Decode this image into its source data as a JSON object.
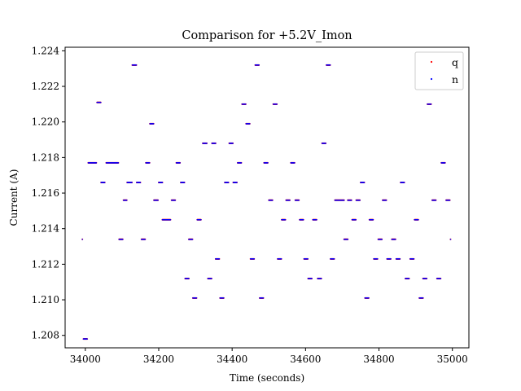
{
  "chart_data": {
    "type": "scatter",
    "title": "Comparison for +5.2V_Imon",
    "xlabel": "Time (seconds)",
    "ylabel": "Current (A)",
    "xlim": [
      33945,
      35045
    ],
    "ylim": [
      1.2073,
      1.2242
    ],
    "xticks": [
      34000,
      34200,
      34400,
      34600,
      34800,
      35000
    ],
    "xtick_labels": [
      "34000",
      "34200",
      "34400",
      "34600",
      "34800",
      "35000"
    ],
    "yticks": [
      1.208,
      1.21,
      1.212,
      1.214,
      1.216,
      1.218,
      1.22,
      1.222,
      1.224
    ],
    "ytick_labels": [
      "1.208",
      "1.210",
      "1.212",
      "1.214",
      "1.216",
      "1.218",
      "1.220",
      "1.222",
      "1.224"
    ],
    "grid": false,
    "legend": {
      "position": "top-right"
    },
    "series": [
      {
        "name": "q",
        "color": "#ff0000",
        "segments": [
          [
            33992,
            33992,
            1.2134
          ],
          [
            33995,
            34005,
            1.2078
          ],
          [
            34008,
            34030,
            1.2177
          ],
          [
            34032,
            34042,
            1.2211
          ],
          [
            34043,
            34053,
            1.2166
          ],
          [
            34057,
            34090,
            1.2177
          ],
          [
            34092,
            34102,
            1.2134
          ],
          [
            34104,
            34113,
            1.2156
          ],
          [
            34114,
            34127,
            1.2166
          ],
          [
            34128,
            34139,
            1.2232
          ],
          [
            34140,
            34150,
            1.2166
          ],
          [
            34153,
            34163,
            1.2134
          ],
          [
            34165,
            34175,
            1.2177
          ],
          [
            34176,
            34186,
            1.2199
          ],
          [
            34187,
            34198,
            1.2156
          ],
          [
            34200,
            34210,
            1.2166
          ],
          [
            34210,
            34232,
            1.2145
          ],
          [
            34235,
            34245,
            1.2156
          ],
          [
            34248,
            34258,
            1.2177
          ],
          [
            34260,
            34270,
            1.2166
          ],
          [
            34272,
            34282,
            1.2112
          ],
          [
            34282,
            34292,
            1.2134
          ],
          [
            34293,
            34303,
            1.2101
          ],
          [
            34305,
            34315,
            1.2145
          ],
          [
            34320,
            34331,
            1.2188
          ],
          [
            34334,
            34344,
            1.2112
          ],
          [
            34345,
            34355,
            1.2188
          ],
          [
            34355,
            34365,
            1.2123
          ],
          [
            34367,
            34377,
            1.2101
          ],
          [
            34380,
            34390,
            1.2166
          ],
          [
            34392,
            34402,
            1.2188
          ],
          [
            34403,
            34413,
            1.2166
          ],
          [
            34415,
            34425,
            1.2177
          ],
          [
            34427,
            34437,
            1.221
          ],
          [
            34438,
            34448,
            1.2199
          ],
          [
            34450,
            34460,
            1.2123
          ],
          [
            34463,
            34473,
            1.2232
          ],
          [
            34475,
            34485,
            1.2101
          ],
          [
            34487,
            34497,
            1.2177
          ],
          [
            34500,
            34510,
            1.2156
          ],
          [
            34512,
            34522,
            1.221
          ],
          [
            34524,
            34534,
            1.2123
          ],
          [
            34535,
            34545,
            1.2145
          ],
          [
            34547,
            34557,
            1.2156
          ],
          [
            34560,
            34570,
            1.2177
          ],
          [
            34572,
            34582,
            1.2156
          ],
          [
            34584,
            34594,
            1.2145
          ],
          [
            34596,
            34606,
            1.2123
          ],
          [
            34607,
            34617,
            1.2112
          ],
          [
            34620,
            34630,
            1.2145
          ],
          [
            34633,
            34643,
            1.2112
          ],
          [
            34645,
            34655,
            1.2188
          ],
          [
            34657,
            34667,
            1.2232
          ],
          [
            34668,
            34678,
            1.2123
          ],
          [
            34680,
            34705,
            1.2156
          ],
          [
            34705,
            34715,
            1.2134
          ],
          [
            34715,
            34725,
            1.2156
          ],
          [
            34727,
            34737,
            1.2145
          ],
          [
            34738,
            34748,
            1.2156
          ],
          [
            34750,
            34760,
            1.2166
          ],
          [
            34762,
            34772,
            1.2101
          ],
          [
            34774,
            34784,
            1.2145
          ],
          [
            34786,
            34796,
            1.2123
          ],
          [
            34798,
            34808,
            1.2134
          ],
          [
            34810,
            34820,
            1.2156
          ],
          [
            34822,
            34832,
            1.2123
          ],
          [
            34835,
            34845,
            1.2134
          ],
          [
            34847,
            34857,
            1.2123
          ],
          [
            34859,
            34869,
            1.2166
          ],
          [
            34872,
            34882,
            1.2112
          ],
          [
            34885,
            34895,
            1.2123
          ],
          [
            34897,
            34907,
            1.2145
          ],
          [
            34910,
            34920,
            1.2101
          ],
          [
            34920,
            34930,
            1.2112
          ],
          [
            34932,
            34942,
            1.221
          ],
          [
            34945,
            34955,
            1.2156
          ],
          [
            34958,
            34968,
            1.2112
          ],
          [
            34970,
            34980,
            1.2177
          ],
          [
            34983,
            34993,
            1.2156
          ],
          [
            34995,
            34995,
            1.2134
          ]
        ]
      },
      {
        "name": "n",
        "color": "#0000ff",
        "segments": [
          [
            33992,
            33992,
            1.2134
          ],
          [
            33995,
            34005,
            1.2078
          ],
          [
            34008,
            34030,
            1.2177
          ],
          [
            34032,
            34042,
            1.2211
          ],
          [
            34043,
            34053,
            1.2166
          ],
          [
            34057,
            34090,
            1.2177
          ],
          [
            34092,
            34102,
            1.2134
          ],
          [
            34104,
            34113,
            1.2156
          ],
          [
            34114,
            34127,
            1.2166
          ],
          [
            34128,
            34139,
            1.2232
          ],
          [
            34140,
            34150,
            1.2166
          ],
          [
            34153,
            34163,
            1.2134
          ],
          [
            34165,
            34175,
            1.2177
          ],
          [
            34176,
            34186,
            1.2199
          ],
          [
            34187,
            34198,
            1.2156
          ],
          [
            34200,
            34210,
            1.2166
          ],
          [
            34210,
            34232,
            1.2145
          ],
          [
            34235,
            34245,
            1.2156
          ],
          [
            34248,
            34258,
            1.2177
          ],
          [
            34260,
            34270,
            1.2166
          ],
          [
            34272,
            34282,
            1.2112
          ],
          [
            34282,
            34292,
            1.2134
          ],
          [
            34293,
            34303,
            1.2101
          ],
          [
            34305,
            34315,
            1.2145
          ],
          [
            34320,
            34331,
            1.2188
          ],
          [
            34334,
            34344,
            1.2112
          ],
          [
            34345,
            34355,
            1.2188
          ],
          [
            34355,
            34365,
            1.2123
          ],
          [
            34367,
            34377,
            1.2101
          ],
          [
            34380,
            34390,
            1.2166
          ],
          [
            34392,
            34402,
            1.2188
          ],
          [
            34403,
            34413,
            1.2166
          ],
          [
            34415,
            34425,
            1.2177
          ],
          [
            34427,
            34437,
            1.221
          ],
          [
            34438,
            34448,
            1.2199
          ],
          [
            34450,
            34460,
            1.2123
          ],
          [
            34463,
            34473,
            1.2232
          ],
          [
            34475,
            34485,
            1.2101
          ],
          [
            34487,
            34497,
            1.2177
          ],
          [
            34500,
            34510,
            1.2156
          ],
          [
            34512,
            34522,
            1.221
          ],
          [
            34524,
            34534,
            1.2123
          ],
          [
            34535,
            34545,
            1.2145
          ],
          [
            34547,
            34557,
            1.2156
          ],
          [
            34560,
            34570,
            1.2177
          ],
          [
            34572,
            34582,
            1.2156
          ],
          [
            34584,
            34594,
            1.2145
          ],
          [
            34596,
            34606,
            1.2123
          ],
          [
            34607,
            34617,
            1.2112
          ],
          [
            34620,
            34630,
            1.2145
          ],
          [
            34633,
            34643,
            1.2112
          ],
          [
            34645,
            34655,
            1.2188
          ],
          [
            34657,
            34667,
            1.2232
          ],
          [
            34668,
            34678,
            1.2123
          ],
          [
            34680,
            34705,
            1.2156
          ],
          [
            34705,
            34715,
            1.2134
          ],
          [
            34715,
            34725,
            1.2156
          ],
          [
            34727,
            34737,
            1.2145
          ],
          [
            34738,
            34748,
            1.2156
          ],
          [
            34750,
            34760,
            1.2166
          ],
          [
            34762,
            34772,
            1.2101
          ],
          [
            34774,
            34784,
            1.2145
          ],
          [
            34786,
            34796,
            1.2123
          ],
          [
            34798,
            34808,
            1.2134
          ],
          [
            34810,
            34820,
            1.2156
          ],
          [
            34822,
            34832,
            1.2123
          ],
          [
            34835,
            34845,
            1.2134
          ],
          [
            34847,
            34857,
            1.2123
          ],
          [
            34859,
            34869,
            1.2166
          ],
          [
            34872,
            34882,
            1.2112
          ],
          [
            34885,
            34895,
            1.2123
          ],
          [
            34897,
            34907,
            1.2145
          ],
          [
            34910,
            34920,
            1.2101
          ],
          [
            34920,
            34930,
            1.2112
          ],
          [
            34932,
            34942,
            1.221
          ],
          [
            34945,
            34955,
            1.2156
          ],
          [
            34958,
            34968,
            1.2112
          ],
          [
            34970,
            34980,
            1.2177
          ],
          [
            34983,
            34993,
            1.2156
          ],
          [
            34995,
            34995,
            1.2134
          ]
        ]
      }
    ]
  }
}
